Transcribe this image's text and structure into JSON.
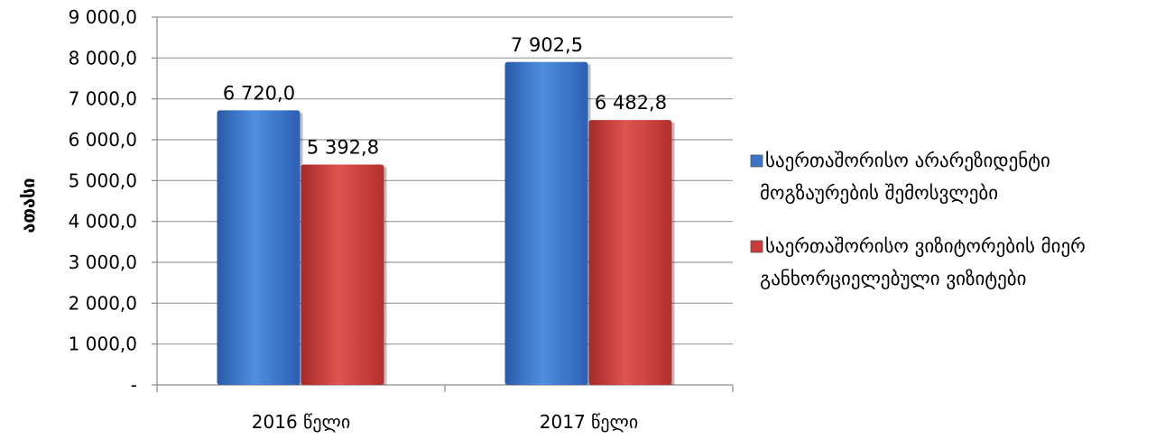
{
  "chart_data": {
    "type": "bar",
    "ylabel": "ათასი",
    "xlabel": "",
    "title": "",
    "ylim": [
      0,
      9000
    ],
    "yticks": [
      {
        "value": 0,
        "label": "-"
      },
      {
        "value": 1000,
        "label": "1 000,0"
      },
      {
        "value": 2000,
        "label": "2 000,0"
      },
      {
        "value": 3000,
        "label": "3 000,0"
      },
      {
        "value": 4000,
        "label": "4 000,0"
      },
      {
        "value": 5000,
        "label": "5 000,0"
      },
      {
        "value": 6000,
        "label": "6 000,0"
      },
      {
        "value": 7000,
        "label": "7 000,0"
      },
      {
        "value": 8000,
        "label": "8 000,0"
      },
      {
        "value": 9000,
        "label": "9 000,0"
      }
    ],
    "categories": [
      "2016 წელი",
      "2017 წელი"
    ],
    "grid": true,
    "legend_position": "right",
    "series": [
      {
        "name": "საერთაშორისო არარეზიდენტი მოგზაურების შემოსვლები",
        "legend_lines": [
          "საერთაშორისო არარეზიდენტი",
          "მოგზაურების შემოსვლები"
        ],
        "color": "#3a74c9",
        "values": [
          6720.0,
          7902.5
        ],
        "labels": [
          "6 720,0",
          "7 902,5"
        ]
      },
      {
        "name": "საერთაშორისო ვიზიტორების მიერ განხორციელებული ვიზიტები",
        "legend_lines": [
          "საერთაშორისო ვიზიტორების მიერ",
          "განხორციელებული ვიზიტები"
        ],
        "color": "#cc3b38",
        "values": [
          5392.8,
          6482.8
        ],
        "labels": [
          "5 392,8",
          "6 482,8"
        ]
      }
    ]
  }
}
